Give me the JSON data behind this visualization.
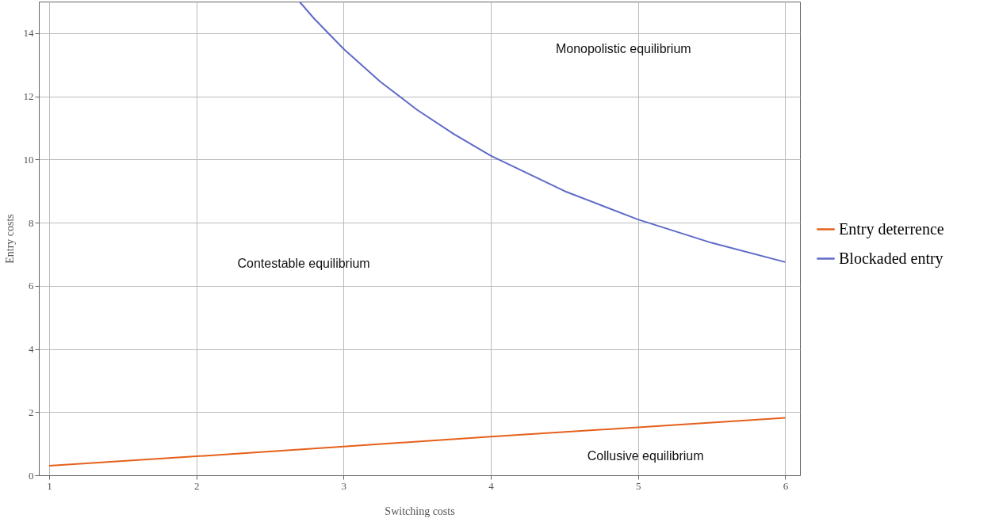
{
  "chart_data": {
    "type": "line",
    "xlabel": "Switching costs",
    "ylabel": "Entry costs",
    "xlim": [
      0.93,
      6.1
    ],
    "ylim": [
      0,
      15
    ],
    "xticks": [
      {
        "value": 1,
        "label": "1"
      },
      {
        "value": 2,
        "label": "2"
      },
      {
        "value": 3,
        "label": "3"
      },
      {
        "value": 4,
        "label": "4"
      },
      {
        "value": 5,
        "label": "5"
      },
      {
        "value": 6,
        "label": "6"
      }
    ],
    "yticks": [
      0,
      2,
      4,
      6,
      8,
      10,
      12,
      14
    ],
    "grid": true,
    "legend": "right",
    "marker": "none",
    "line_style": "solid",
    "series": [
      {
        "name": "Entry deterrence",
        "color": "#e5601a",
        "x": [
          1,
          2,
          3,
          4,
          5,
          6
        ],
        "values": [
          0.3,
          0.6,
          0.91,
          1.22,
          1.52,
          1.82
        ]
      },
      {
        "name": "Blockaded entry",
        "color": "#5e6ac8",
        "x": [
          2.7,
          2.8,
          3,
          3.25,
          3.5,
          3.75,
          4,
          4.5,
          5,
          5.5,
          6
        ],
        "values": [
          15,
          14.46,
          13.5,
          12.46,
          11.57,
          10.8,
          10.12,
          9,
          8.1,
          7.36,
          6.75
        ]
      }
    ],
    "annotations": [
      "Monopolistic equilibrium",
      "Contestable equilibrium",
      "Collusive equilibrium"
    ]
  }
}
